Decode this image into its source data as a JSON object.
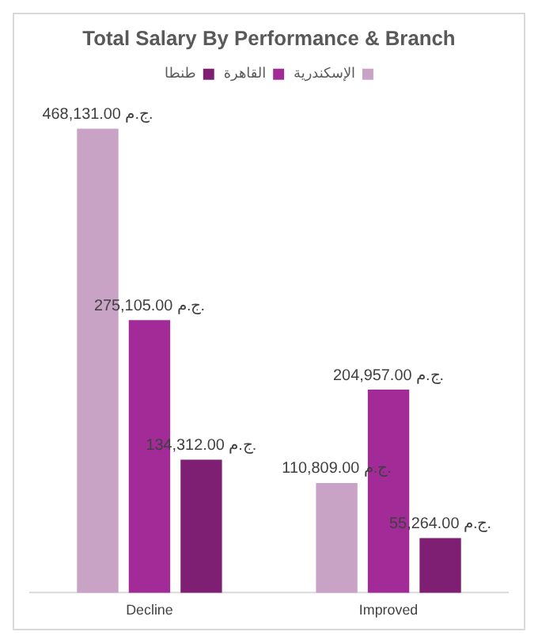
{
  "chart_data": {
    "type": "bar",
    "title": "Total Salary By Performance & Branch",
    "categories": [
      "Decline",
      "Improved"
    ],
    "series": [
      {
        "name": "الإسكندرية",
        "color": "#c9a3c6",
        "values": [
          468131,
          110809
        ],
        "value_labels": [
          "468,131.00 ج.م.",
          "110,809.00 ج.م."
        ]
      },
      {
        "name": "القاهرة",
        "color": "#a22b98",
        "values": [
          275105,
          204957
        ],
        "value_labels": [
          "275,105.00 ج.م.",
          "204,957.00 ج.م."
        ]
      },
      {
        "name": "طنطا",
        "color": "#7e1f73",
        "values": [
          134312,
          55264
        ],
        "value_labels": [
          "134,312.00 ج.م.",
          "55,264.00 ج.م."
        ]
      }
    ],
    "legend": "top",
    "grid": false
  }
}
